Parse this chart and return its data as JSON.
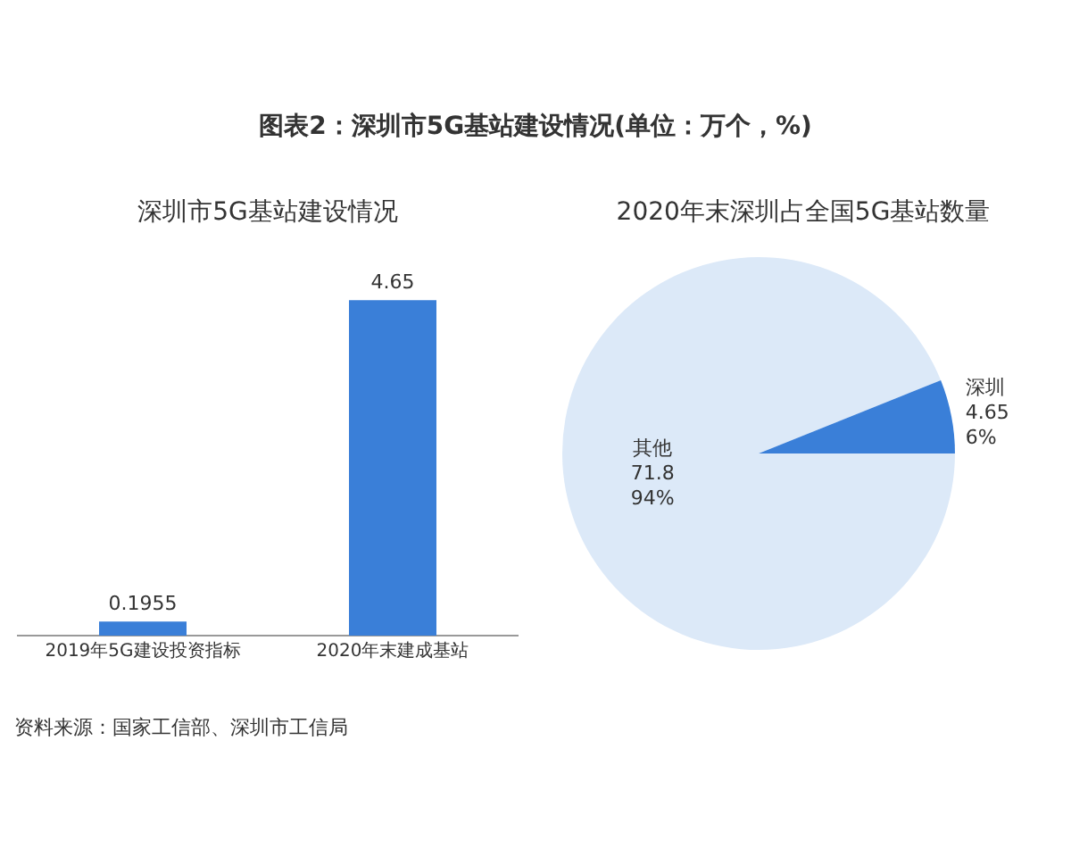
{
  "chart_data": [
    {
      "type": "bar",
      "title": "图表2：深圳市5G基站建设情况(单位：万个，%)",
      "subtitle": "深圳市5G基站建设情况",
      "categories": [
        "2019年5G建设投资指标",
        "2020年末建成基站"
      ],
      "values": [
        0.1955,
        4.65
      ],
      "color": "#3a7fd8",
      "data_labels": true,
      "grid": false,
      "legend": false,
      "annotations": [
        "资料来源：国家工信部、深圳市工信局"
      ]
    },
    {
      "type": "pie",
      "title": "2020年末深圳占全国5G基站数量",
      "categories": [
        "其他",
        "深圳"
      ],
      "values": [
        71.8,
        4.65
      ],
      "colors": [
        "#dce9f8",
        "#3a7fd8"
      ],
      "value_labels": [
        "71.8\n94%",
        "4.65\n6%"
      ],
      "legend": false
    }
  ]
}
